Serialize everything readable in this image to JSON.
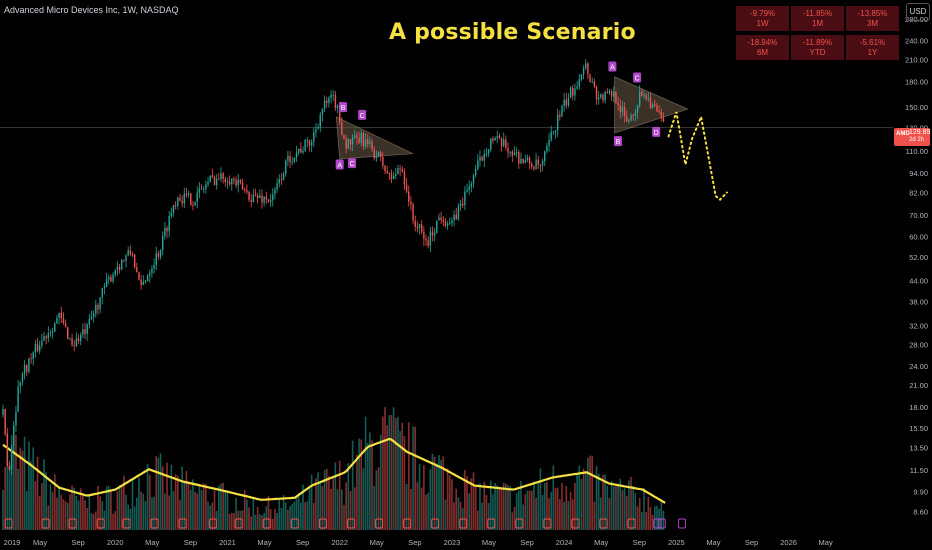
{
  "symbol_line": "Advanced Micro Devices Inc, 1W, NASDAQ",
  "headline": "A possible Scenario",
  "currency": "USD",
  "price_tag": {
    "symbol": "AMD",
    "value": "129.89",
    "countdown": "2d 2h"
  },
  "performance": [
    {
      "value": "-9.79%",
      "label": "1W"
    },
    {
      "value": "-11.85%",
      "label": "1M"
    },
    {
      "value": "-13.85%",
      "label": "3M"
    },
    {
      "value": "-18.94%",
      "label": "6M"
    },
    {
      "value": "-11.89%",
      "label": "YTD"
    },
    {
      "value": "-5.61%",
      "label": "1Y"
    }
  ],
  "colors": {
    "up": "#26a69a",
    "down": "#ef5350",
    "volume_ma": "#f5e042",
    "projection": "#f5e042",
    "pattern_fill": "#6b5a48",
    "pattern_label": "#b047c9",
    "price_tag": "#f0524b",
    "perf_cell": "#4a0d13",
    "perf_text": "#f0524b"
  },
  "chart_data": {
    "type": "candlestick",
    "interval": "1W",
    "y_scale": "log",
    "ylim": [
      7.5,
      300
    ],
    "y_ticks": [
      "280.00",
      "240.00",
      "210.00",
      "180.00",
      "150.00",
      "130.00",
      "110.00",
      "94.00",
      "82.00",
      "70.00",
      "60.00",
      "52.00",
      "44.00",
      "38.00",
      "32.00",
      "28.00",
      "24.00",
      "21.00",
      "18.00",
      "15.50",
      "13.50",
      "11.50",
      "9.90",
      "8.60"
    ],
    "x_ticks": [
      "2019",
      "May",
      "Sep",
      "2020",
      "May",
      "Sep",
      "2021",
      "May",
      "Sep",
      "2022",
      "May",
      "Sep",
      "2023",
      "May",
      "Sep",
      "2024",
      "May",
      "Sep",
      "2025",
      "May",
      "Sep",
      "2026",
      "May"
    ],
    "price_path": [
      {
        "t": 2019.0,
        "p": 17
      },
      {
        "t": 2019.05,
        "p": 11
      },
      {
        "t": 2019.15,
        "p": 22
      },
      {
        "t": 2019.35,
        "p": 29
      },
      {
        "t": 2019.5,
        "p": 34
      },
      {
        "t": 2019.62,
        "p": 28
      },
      {
        "t": 2019.75,
        "p": 31
      },
      {
        "t": 2020.0,
        "p": 48
      },
      {
        "t": 2020.15,
        "p": 54
      },
      {
        "t": 2020.22,
        "p": 41
      },
      {
        "t": 2020.4,
        "p": 55
      },
      {
        "t": 2020.55,
        "p": 80
      },
      {
        "t": 2020.7,
        "p": 78
      },
      {
        "t": 2020.85,
        "p": 90
      },
      {
        "t": 2021.0,
        "p": 92
      },
      {
        "t": 2021.2,
        "p": 80
      },
      {
        "t": 2021.4,
        "p": 78
      },
      {
        "t": 2021.55,
        "p": 105
      },
      {
        "t": 2021.75,
        "p": 118
      },
      {
        "t": 2021.85,
        "p": 150
      },
      {
        "t": 2021.95,
        "p": 160
      },
      {
        "t": 2022.05,
        "p": 115
      },
      {
        "t": 2022.2,
        "p": 120
      },
      {
        "t": 2022.35,
        "p": 105
      },
      {
        "t": 2022.45,
        "p": 90
      },
      {
        "t": 2022.55,
        "p": 98
      },
      {
        "t": 2022.65,
        "p": 68
      },
      {
        "t": 2022.78,
        "p": 57
      },
      {
        "t": 2022.9,
        "p": 70
      },
      {
        "t": 2023.0,
        "p": 65
      },
      {
        "t": 2023.15,
        "p": 85
      },
      {
        "t": 2023.35,
        "p": 120
      },
      {
        "t": 2023.45,
        "p": 115
      },
      {
        "t": 2023.65,
        "p": 102
      },
      {
        "t": 2023.8,
        "p": 98
      },
      {
        "t": 2023.95,
        "p": 140
      },
      {
        "t": 2024.1,
        "p": 175
      },
      {
        "t": 2024.18,
        "p": 205
      },
      {
        "t": 2024.3,
        "p": 160
      },
      {
        "t": 2024.45,
        "p": 165
      },
      {
        "t": 2024.55,
        "p": 135
      },
      {
        "t": 2024.62,
        "p": 145
      },
      {
        "t": 2024.7,
        "p": 170
      },
      {
        "t": 2024.82,
        "p": 145
      },
      {
        "t": 2024.9,
        "p": 130
      }
    ],
    "projection": [
      {
        "t": 2024.93,
        "p": 122
      },
      {
        "t": 2025.0,
        "p": 145
      },
      {
        "t": 2025.08,
        "p": 100
      },
      {
        "t": 2025.14,
        "p": 120
      },
      {
        "t": 2025.22,
        "p": 140
      },
      {
        "t": 2025.35,
        "p": 80
      },
      {
        "t": 2025.39,
        "p": 78
      },
      {
        "t": 2025.45,
        "p": 82
      }
    ],
    "volume_ma": [
      {
        "t": 2019.0,
        "v": 0.62
      },
      {
        "t": 2019.25,
        "v": 0.42
      },
      {
        "t": 2019.5,
        "v": 0.2
      },
      {
        "t": 2019.75,
        "v": 0.12
      },
      {
        "t": 2020.0,
        "v": 0.18
      },
      {
        "t": 2020.3,
        "v": 0.38
      },
      {
        "t": 2020.6,
        "v": 0.26
      },
      {
        "t": 2021.0,
        "v": 0.16
      },
      {
        "t": 2021.3,
        "v": 0.08
      },
      {
        "t": 2021.6,
        "v": 0.1
      },
      {
        "t": 2021.75,
        "v": 0.22
      },
      {
        "t": 2022.05,
        "v": 0.35
      },
      {
        "t": 2022.25,
        "v": 0.6
      },
      {
        "t": 2022.45,
        "v": 0.68
      },
      {
        "t": 2022.6,
        "v": 0.55
      },
      {
        "t": 2022.9,
        "v": 0.4
      },
      {
        "t": 2023.2,
        "v": 0.22
      },
      {
        "t": 2023.55,
        "v": 0.18
      },
      {
        "t": 2023.9,
        "v": 0.3
      },
      {
        "t": 2024.2,
        "v": 0.35
      },
      {
        "t": 2024.4,
        "v": 0.24
      },
      {
        "t": 2024.7,
        "v": 0.18
      },
      {
        "t": 2024.9,
        "v": 0.05
      }
    ],
    "patterns": [
      {
        "triangle": [
          {
            "t": 2021.97,
            "p": 140
          },
          {
            "t": 2022.65,
            "p": 108
          },
          {
            "t": 2022.0,
            "p": 104
          }
        ],
        "labels": [
          {
            "text": "A",
            "t": 2022.0,
            "p": 100
          },
          {
            "text": "B",
            "t": 2022.03,
            "p": 150
          },
          {
            "text": "C",
            "t": 2022.11,
            "p": 101
          },
          {
            "text": "C",
            "t": 2022.2,
            "p": 142
          },
          {
            "text": "",
            "t": 2022.08,
            "p": 121
          }
        ]
      },
      {
        "triangle": [
          {
            "t": 2024.45,
            "p": 186
          },
          {
            "t": 2025.1,
            "p": 148
          },
          {
            "t": 2024.45,
            "p": 125
          }
        ],
        "labels": [
          {
            "text": "A",
            "t": 2024.43,
            "p": 200
          },
          {
            "text": "B",
            "t": 2024.48,
            "p": 118
          },
          {
            "text": "C",
            "t": 2024.65,
            "p": 185
          },
          {
            "text": "D",
            "t": 2024.82,
            "p": 126
          },
          {
            "text": "",
            "t": 2024.57,
            "p": 160
          }
        ]
      }
    ],
    "bottom_markers": [
      2019.05,
      2019.38,
      2019.62,
      2019.87,
      2020.1,
      2020.35,
      2020.6,
      2020.87,
      2021.1,
      2021.35,
      2021.6,
      2021.85,
      2022.1,
      2022.35,
      2022.6,
      2022.85,
      2023.1,
      2023.35,
      2023.6,
      2023.85,
      2024.1,
      2024.35,
      2024.6,
      2024.83,
      2024.87,
      2025.05
    ],
    "current_price": 129.89
  }
}
